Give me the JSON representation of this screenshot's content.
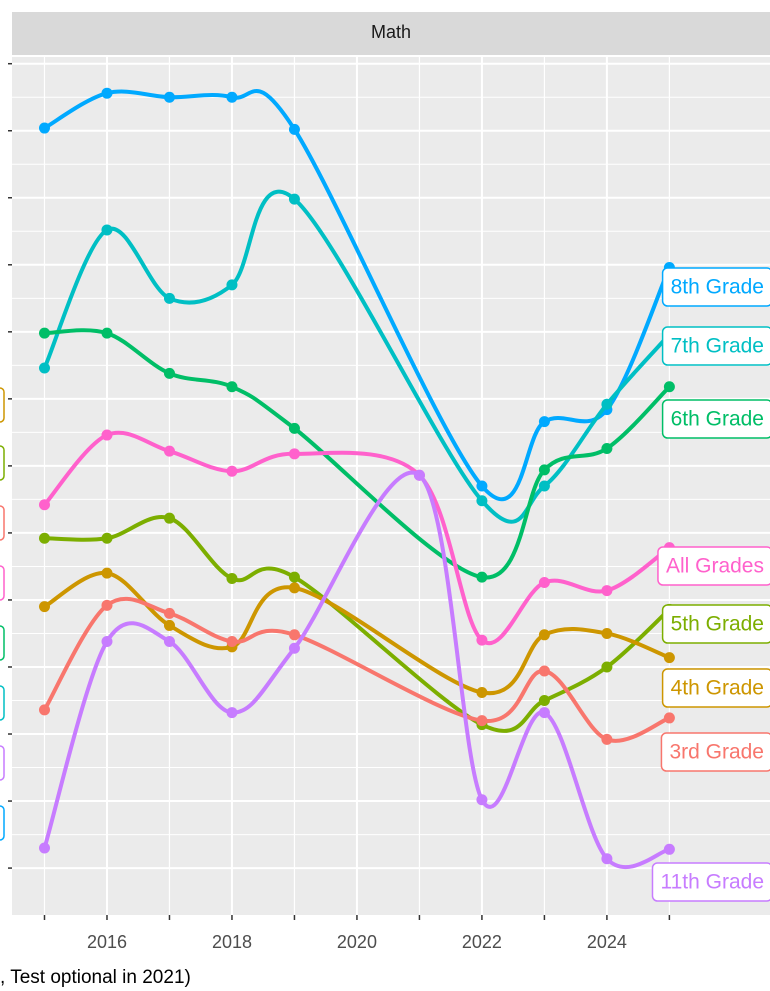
{
  "chart_data": {
    "type": "line",
    "strip": "Math",
    "caption": ", Test optional in 2021)",
    "xlim": [
      2014.48,
      2026.61
    ],
    "xticks": [
      2016,
      2018,
      2020,
      2022,
      2024
    ],
    "xminor": [
      2015,
      2016,
      2017,
      2018,
      2019,
      2020,
      2021,
      2022,
      2023,
      2024,
      2025
    ],
    "ylim": [
      -3.5,
      60.5
    ],
    "yticks": [
      0,
      5,
      10,
      15,
      20,
      25,
      30,
      35,
      40,
      45,
      50,
      55,
      60
    ],
    "grid": true,
    "series": [
      {
        "name": "8th Grade",
        "color": "#00A9FF",
        "x": [
          2015,
          2016,
          2017,
          2018,
          2019,
          2022,
          2023,
          2024,
          2025
        ],
        "values": [
          55.2,
          57.8,
          57.5,
          57.5,
          55.1,
          28.5,
          33.3,
          34.2,
          44.8
        ]
      },
      {
        "name": "7th Grade",
        "color": "#00BFC4",
        "x": [
          2015,
          2016,
          2017,
          2018,
          2019,
          2022,
          2023,
          2024,
          2025
        ],
        "values": [
          37.3,
          47.6,
          42.5,
          43.5,
          49.9,
          27.4,
          28.5,
          34.6,
          39.8
        ]
      },
      {
        "name": "6th Grade",
        "color": "#00BE67",
        "x": [
          2015,
          2016,
          2017,
          2018,
          2019,
          2022,
          2023,
          2024,
          2025
        ],
        "values": [
          39.9,
          39.9,
          36.9,
          35.9,
          32.8,
          21.7,
          29.7,
          31.3,
          35.9
        ]
      },
      {
        "name": "All Grades",
        "color": "#FF61CC",
        "x": [
          2015,
          2016,
          2017,
          2018,
          2019,
          2021,
          2022,
          2023,
          2024,
          2025
        ],
        "values": [
          27.1,
          32.3,
          31.1,
          29.6,
          30.9,
          29.3,
          17.0,
          21.3,
          20.7,
          23.9
        ]
      },
      {
        "name": "5th Grade",
        "color": "#7CAE00",
        "x": [
          2015,
          2016,
          2017,
          2018,
          2019,
          2022,
          2023,
          2024,
          2025
        ],
        "values": [
          24.6,
          24.6,
          26.1,
          21.6,
          21.7,
          10.7,
          12.5,
          15.0,
          19.3
        ]
      },
      {
        "name": "4th Grade",
        "color": "#CD9600",
        "x": [
          2015,
          2016,
          2017,
          2018,
          2019,
          2022,
          2023,
          2024,
          2025
        ],
        "values": [
          19.5,
          22.0,
          18.1,
          16.5,
          20.9,
          13.1,
          17.4,
          17.5,
          15.7
        ]
      },
      {
        "name": "3rd Grade",
        "color": "#F8766D",
        "x": [
          2015,
          2016,
          2017,
          2018,
          2019,
          2022,
          2023,
          2024,
          2025
        ],
        "values": [
          11.8,
          19.6,
          19.0,
          16.9,
          17.4,
          11.0,
          14.7,
          9.6,
          11.2
        ]
      },
      {
        "name": "11th Grade",
        "color": "#C77CFF",
        "x": [
          2015,
          2016,
          2017,
          2018,
          2019,
          2021,
          2022,
          2023,
          2024,
          2025
        ],
        "values": [
          1.5,
          16.9,
          16.9,
          11.6,
          16.4,
          29.3,
          5.1,
          11.6,
          0.7,
          1.4
        ]
      }
    ]
  }
}
